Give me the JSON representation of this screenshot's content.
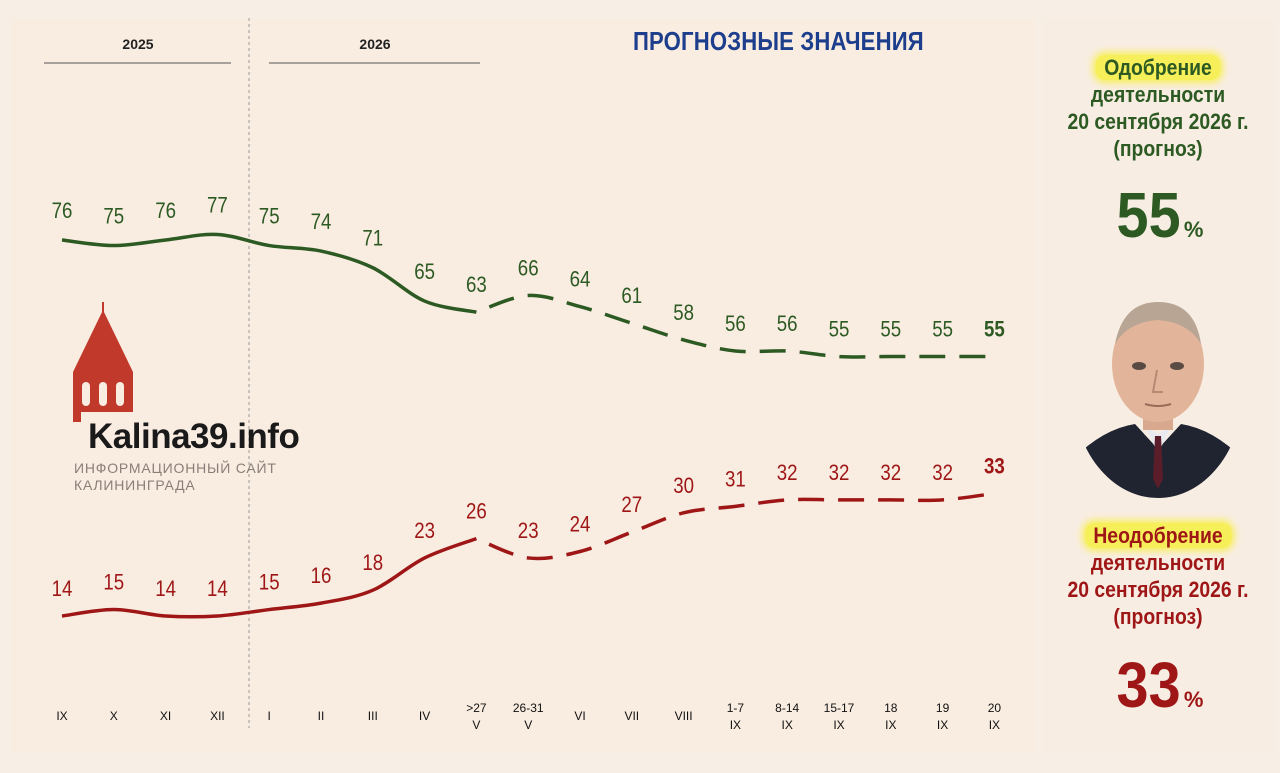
{
  "header": {
    "year_left": "2025",
    "year_right": "2026",
    "forecast_title": "ПРОГНОЗНЫЕ ЗНАЧЕНИЯ"
  },
  "logo": {
    "site": "Kalina39.info",
    "subtitle_line1": "ИНФОРМАЦИОННЫЙ САЙТ",
    "subtitle_line2": "КАЛИНИНГРАДА"
  },
  "side": {
    "approve_line1": "Одобрение",
    "approve_line2": "деятельности",
    "approve_line3": "20 сентября 2026 г.",
    "approve_line4": "(прогноз)",
    "approve_value": "55",
    "disapprove_line1": "Неодобрение",
    "disapprove_line2": "деятельности",
    "disapprove_line3": "20 сентября 2026 г.",
    "disapprove_line4": "(прогноз)",
    "disapprove_value": "33",
    "percent_sign": "%"
  },
  "colors": {
    "approve": "#2c5a22",
    "disapprove": "#9e1616",
    "title": "#1c3e8c",
    "highlight": "#f7ef5a"
  },
  "chart_data": {
    "type": "line",
    "categories": [
      "IX",
      "X",
      "XI",
      "XII",
      "I",
      "II",
      "III",
      "IV",
      ">27 V",
      "26-31 V",
      "VI",
      "VII",
      "VIII",
      "1-7 IX",
      "8-14 IX",
      "15-17 IX",
      "18 IX",
      "19 IX",
      "20 IX"
    ],
    "series": [
      {
        "key": "approve",
        "values": [
          76,
          75,
          76,
          77,
          75,
          74,
          71,
          65,
          63,
          66,
          64,
          61,
          58,
          56,
          56,
          55,
          55,
          55,
          55
        ],
        "forecast_from_index": 8
      },
      {
        "key": "disapprove",
        "values": [
          14,
          15,
          14,
          14,
          15,
          16,
          18,
          23,
          26,
          23,
          24,
          27,
          30,
          31,
          32,
          32,
          32,
          32,
          33
        ],
        "forecast_from_index": 8
      }
    ],
    "year_split_after_index": 3,
    "ylim": [
      0,
      100
    ],
    "grid": false,
    "legend": "none"
  }
}
